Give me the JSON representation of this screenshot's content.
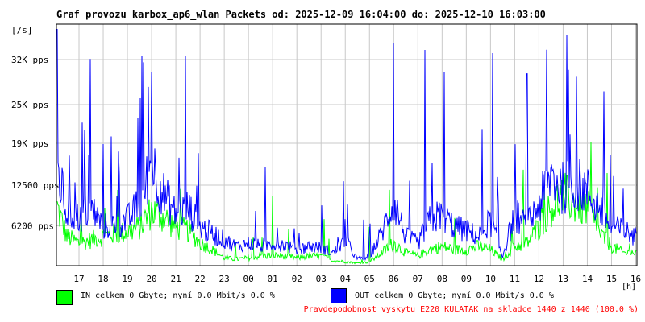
{
  "chart_title": "Graf provozu karbox_ap6_wlan Packets od: 2025-12-09 16:04:00 do: 2025-12-10 16:03:00",
  "y_unit": "[/s]",
  "x_unit": "[h]",
  "legend": {
    "in": {
      "label": "IN celkem 0 Gbyte; nyní   0.0 Mbit/s 0.0 %",
      "color": "#00ff00"
    },
    "out": {
      "label": "OUT celkem 0 Gbyte; nyní   0.0 Mbit/s 0.0 %",
      "color": "#0000ff"
    }
  },
  "footer_note": {
    "text": "Pravdepodobnost vyskytu E220 KULATAK na skladce 1440 z 1440 (100.0 %)",
    "color": "#ff0000"
  },
  "chart_data": {
    "type": "line",
    "title": "Graf provozu karbox_ap6_wlan Packets od: 2025-12-09 16:04:00 do: 2025-12-10 16:03:00",
    "ylabel": "[/s]",
    "xlabel": "[h]",
    "ylim": [
      0,
      37500
    ],
    "xlim": [
      16.067,
      40.05
    ],
    "grid": true,
    "y_ticks": [
      {
        "value": 6200,
        "label": "6200 pps"
      },
      {
        "value": 12500,
        "label": "12500 pps"
      },
      {
        "value": 19000,
        "label": "19K pps"
      },
      {
        "value": 25000,
        "label": "25K pps"
      },
      {
        "value": 32000,
        "label": "32K pps"
      }
    ],
    "x_ticks": [
      {
        "value": 17,
        "label": "17"
      },
      {
        "value": 18,
        "label": "18"
      },
      {
        "value": 19,
        "label": "19"
      },
      {
        "value": 20,
        "label": "20"
      },
      {
        "value": 21,
        "label": "21"
      },
      {
        "value": 22,
        "label": "22"
      },
      {
        "value": 23,
        "label": "23"
      },
      {
        "value": 24,
        "label": "00"
      },
      {
        "value": 25,
        "label": "01"
      },
      {
        "value": 26,
        "label": "02"
      },
      {
        "value": 27,
        "label": "03"
      },
      {
        "value": 28,
        "label": "04"
      },
      {
        "value": 29,
        "label": "05"
      },
      {
        "value": 30,
        "label": "06"
      },
      {
        "value": 31,
        "label": "07"
      },
      {
        "value": 32,
        "label": "08"
      },
      {
        "value": 33,
        "label": "09"
      },
      {
        "value": 34,
        "label": "10"
      },
      {
        "value": 35,
        "label": "11"
      },
      {
        "value": 36,
        "label": "12"
      },
      {
        "value": 37,
        "label": "13"
      },
      {
        "value": 38,
        "label": "14"
      },
      {
        "value": 39,
        "label": "15"
      },
      {
        "value": 40,
        "label": "16"
      }
    ],
    "x": [
      16.1,
      16.5,
      17.0,
      17.5,
      18.0,
      18.5,
      19.0,
      19.5,
      20.0,
      20.5,
      21.0,
      21.5,
      22.0,
      22.5,
      23.0,
      23.5,
      24.0,
      24.5,
      25.0,
      25.5,
      26.0,
      26.5,
      27.0,
      27.5,
      28.0,
      28.5,
      29.0,
      29.5,
      30.0,
      30.5,
      31.0,
      31.5,
      32.0,
      32.5,
      33.0,
      33.5,
      34.0,
      34.5,
      35.0,
      35.5,
      36.0,
      36.5,
      37.0,
      37.5,
      38.0,
      38.5,
      39.0,
      39.5,
      40.0
    ],
    "series": [
      {
        "name": "IN",
        "color": "#00ff00",
        "values": [
          9000,
          4500,
          3500,
          4000,
          4500,
          5000,
          5200,
          6000,
          8500,
          7500,
          6000,
          5500,
          3500,
          2500,
          1200,
          1000,
          1200,
          1500,
          1600,
          1500,
          1200,
          1500,
          1500,
          800,
          600,
          400,
          600,
          2000,
          3500,
          2000,
          1500,
          2500,
          3000,
          2500,
          2500,
          3000,
          2500,
          1000,
          3000,
          3500,
          6000,
          9000,
          11000,
          9500,
          9000,
          5000,
          3000,
          2000,
          2000
        ]
      },
      {
        "name": "OUT",
        "color": "#0000ff",
        "values": [
          15000,
          8000,
          7500,
          9000,
          6000,
          6500,
          7000,
          9500,
          16000,
          11000,
          8000,
          9000,
          6000,
          5000,
          4000,
          3000,
          3500,
          3000,
          3500,
          3200,
          2500,
          3000,
          2800,
          2000,
          4000,
          1000,
          1500,
          5000,
          10000,
          4500,
          3500,
          7000,
          8000,
          6000,
          5500,
          4500,
          7000,
          1500,
          8000,
          6000,
          9500,
          14000,
          12000,
          13000,
          11500,
          9000,
          6000,
          5500,
          4500
        ]
      }
    ],
    "peaks": [
      {
        "series": "OUT",
        "x": 21.4,
        "value": 32500
      },
      {
        "series": "OUT",
        "x": 30.0,
        "value": 34500
      },
      {
        "series": "OUT",
        "x": 31.3,
        "value": 33500
      },
      {
        "series": "OUT",
        "x": 34.1,
        "value": 33000
      },
      {
        "series": "OUT",
        "x": 20.0,
        "value": 30000
      },
      {
        "series": "OUT",
        "x": 32.1,
        "value": 30000
      },
      {
        "series": "OUT",
        "x": 35.5,
        "value": 29800
      }
    ]
  }
}
